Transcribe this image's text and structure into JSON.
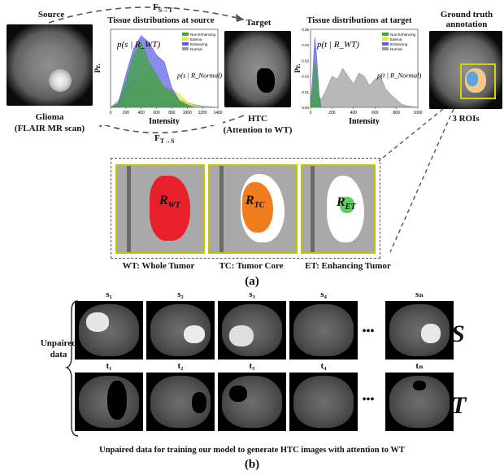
{
  "part_a": {
    "source_title": "Source",
    "source_caption_1": "Glioma",
    "source_caption_2": "(FLAIR MR scan)",
    "target_title": "Target",
    "target_caption_1": "HTC",
    "target_caption_2": "(Attention to WT)",
    "gt_title_1": "Ground truth",
    "gt_title_2": "annotation",
    "gt_caption": "3 ROIs",
    "arrow_top_label": "F",
    "arrow_top_sub": "S→T",
    "arrow_bottom_label": "F",
    "arrow_bottom_sub": "T→S",
    "chart_source_title": "Tissue distributions at source",
    "chart_target_title": "Tissue distributions at target",
    "region_wt_main": "R",
    "region_wt_sub": "WT",
    "region_tc_main": "R",
    "region_tc_sub": "TC",
    "region_et_main": "R",
    "region_et_sub": "ET",
    "wt_caption": "WT: Whole Tumor",
    "tc_caption": "TC: Tumor Core",
    "et_caption": "ET: Enhancing Tumor",
    "panel_label": "(a)"
  },
  "part_b": {
    "s_labels": [
      "s₁",
      "s₂",
      "s₃",
      "s₄",
      "sₙ"
    ],
    "t_labels": [
      "t₁",
      "t₂",
      "t₃",
      "t₄",
      "tₙ"
    ],
    "ellipsis": "•••",
    "row_s_symbol": "S",
    "row_t_symbol": "T",
    "unpaired_1": "Unpaired",
    "unpaired_2": "data",
    "caption": "Unpaired data for training our model to generate HTC images with attention to WT",
    "panel_label": "(b)"
  },
  "colors": {
    "non_enhancing": "#3aa835",
    "edema": "#e6e63a",
    "enhancing": "#5a5ae6",
    "normal": "#9a9a9a",
    "wt_red": "#e8202a",
    "tc_orange": "#f07c1e",
    "et_green": "#5ccf5c",
    "roi_box": "#d8d200"
  },
  "chart_data": [
    {
      "type": "area",
      "title": "Tissue distributions at source",
      "xlabel": "Intensity",
      "ylabel": "Pr.",
      "xlim": [
        0,
        1400
      ],
      "ylim": [
        0,
        0.006
      ],
      "xticks": [
        "0",
        "200",
        "400",
        "600",
        "800",
        "1000",
        "1200",
        "1400"
      ],
      "legend": [
        "Non-Enhancing",
        "Edema",
        "Enhancing",
        "Normal"
      ],
      "legend_position": "top-right",
      "annotations": [
        "p(s | R_WT)",
        "p(s | R_Normal)"
      ],
      "series": [
        {
          "name": "Non-Enhancing",
          "x": [
            0,
            100,
            200,
            300,
            400,
            500,
            600,
            700,
            800,
            900,
            1000,
            1100,
            1200,
            1400
          ],
          "values": [
            0,
            0.0002,
            0.002,
            0.004,
            0.005,
            0.0035,
            0.0025,
            0.0015,
            0.0012,
            0.0005,
            0.0002,
            0,
            0,
            0
          ]
        },
        {
          "name": "Edema",
          "x": [
            0,
            100,
            200,
            300,
            400,
            500,
            600,
            700,
            800,
            900,
            1000,
            1100,
            1200,
            1400
          ],
          "values": [
            0,
            0.0001,
            0.001,
            0.002,
            0.0025,
            0.0028,
            0.002,
            0.0016,
            0.0014,
            0.001,
            0.0004,
            0.0001,
            0,
            0
          ]
        },
        {
          "name": "Enhancing",
          "x": [
            0,
            100,
            200,
            300,
            400,
            500,
            600,
            700,
            800,
            900,
            1000,
            1100,
            1200,
            1400
          ],
          "values": [
            0,
            0.0003,
            0.0025,
            0.0045,
            0.0055,
            0.005,
            0.004,
            0.0035,
            0.0015,
            0.0005,
            0.0002,
            0,
            0,
            0
          ]
        },
        {
          "name": "Normal",
          "x": [
            0,
            100,
            200,
            300,
            400,
            500,
            600,
            700,
            800,
            900,
            1000,
            1100,
            1200,
            1400
          ],
          "values": [
            0,
            0.0005,
            0.0015,
            0.0022,
            0.0018,
            0.0012,
            0.0008,
            0.0005,
            0.0004,
            0.0006,
            0.0004,
            0.0002,
            0.0001,
            0
          ]
        }
      ]
    },
    {
      "type": "area",
      "title": "Tissue distributions at target",
      "xlabel": "Intensity",
      "ylabel": "Pr.",
      "xlim": [
        0,
        1000
      ],
      "ylim": [
        0,
        0.05
      ],
      "yticks": [
        "0.00",
        "0.01",
        "0.02",
        "0.03",
        "0.04",
        "0.05"
      ],
      "xticks": [
        "0",
        "200",
        "400",
        "600",
        "800",
        "1000"
      ],
      "legend": [
        "Non-Enhancing",
        "Edema",
        "Enhancing",
        "Normal"
      ],
      "legend_position": "top-right",
      "annotations": [
        "p(t | R_WT)",
        "p(t | R_Normal)"
      ],
      "series": [
        {
          "name": "Non-Enhancing",
          "x": [
            0,
            20,
            40,
            60,
            80,
            100,
            200,
            1000
          ],
          "values": [
            0,
            0.01,
            0.03,
            0.02,
            0.005,
            0,
            0,
            0
          ]
        },
        {
          "name": "Edema",
          "x": [
            0,
            20,
            40,
            60,
            80,
            100,
            200,
            1000
          ],
          "values": [
            0,
            0.012,
            0.02,
            0.015,
            0.004,
            0,
            0,
            0
          ]
        },
        {
          "name": "Enhancing",
          "x": [
            0,
            20,
            40,
            60,
            80,
            100,
            200,
            1000
          ],
          "values": [
            0,
            0.02,
            0.045,
            0.03,
            0.008,
            0,
            0,
            0
          ]
        },
        {
          "name": "Normal",
          "x": [
            0,
            50,
            100,
            150,
            200,
            250,
            300,
            350,
            400,
            450,
            500,
            550,
            600,
            650,
            700,
            750,
            800,
            850,
            900,
            1000
          ],
          "values": [
            0,
            0.01,
            0.005,
            0.012,
            0.02,
            0.018,
            0.025,
            0.02,
            0.015,
            0.022,
            0.02,
            0.014,
            0.018,
            0.02,
            0.012,
            0.008,
            0.005,
            0.002,
            0.001,
            0
          ]
        }
      ]
    }
  ]
}
